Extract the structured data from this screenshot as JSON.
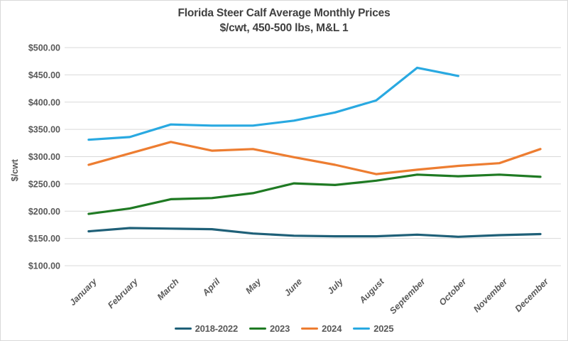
{
  "chart_data": {
    "type": "line",
    "title": "Florida Steer Calf Average Monthly Prices",
    "subtitle": "$/cwt, 450-500 lbs, M&L 1",
    "ylabel": "$/cwt",
    "xlabel": "",
    "categories": [
      "January",
      "February",
      "March",
      "April",
      "May",
      "June",
      "July",
      "August",
      "September",
      "October",
      "November",
      "December"
    ],
    "ylim": [
      100,
      500
    ],
    "y_step": 50,
    "grid": true,
    "legend_position": "bottom",
    "y_tick_labels": [
      "$100.00",
      "$150.00",
      "$200.00",
      "$250.00",
      "$300.00",
      "$350.00",
      "$400.00",
      "$450.00",
      "$500.00"
    ],
    "y_tick_values": [
      100,
      150,
      200,
      250,
      300,
      350,
      400,
      450,
      500
    ],
    "series": [
      {
        "name": "2018-2022",
        "color": "#1F6078",
        "values": [
          163,
          169,
          168,
          167,
          159,
          155,
          154,
          154,
          157,
          153,
          156,
          158
        ]
      },
      {
        "name": "2023",
        "color": "#1F7A23",
        "values": [
          195,
          205,
          222,
          224,
          233,
          251,
          248,
          256,
          267,
          264,
          267,
          263
        ]
      },
      {
        "name": "2024",
        "color": "#ED7D31",
        "values": [
          285,
          306,
          327,
          311,
          314,
          299,
          285,
          268,
          276,
          283,
          288,
          314
        ]
      },
      {
        "name": "2025",
        "color": "#29A9E1",
        "values": [
          331,
          336,
          359,
          357,
          357,
          366,
          381,
          403,
          463,
          448,
          null,
          null
        ]
      }
    ]
  },
  "colors": {
    "background": "#FFFFFF",
    "border": "#D9D9D9",
    "gridline": "#D9D9D9",
    "title_text": "#404040",
    "axis_text": "#595959"
  }
}
